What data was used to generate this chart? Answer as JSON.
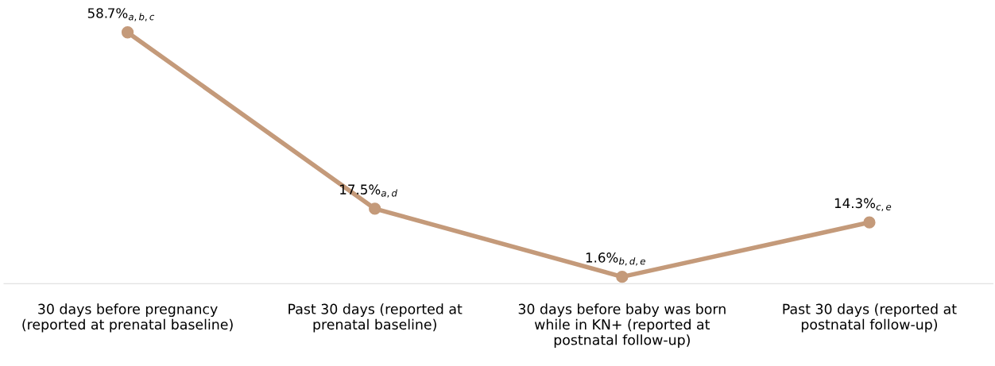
{
  "chart_data": {
    "type": "line",
    "categories": [
      "30 days before pregnancy\n(reported at prenatal baseline)",
      "Past 30 days (reported at\nprenatal baseline)",
      "30 days before baby was born\nwhile in KN+ (reported at\npostnatal follow-up)",
      "Past 30 days (reported at\npostnatal follow-up)"
    ],
    "series": [
      {
        "color": "#c49a7a",
        "values": [
          58.7,
          17.5,
          1.6,
          14.3
        ],
        "value_labels": [
          "58.7%$_{a,b,c}$",
          "17.5%$_{a,d}$",
          "1.6%$_{b,d,e}$",
          "14.3%$_{c,e}$"
        ]
      }
    ],
    "marker": "circle",
    "line_style": "solid",
    "grid": false,
    "legend": false,
    "tick_labels": "x"
  }
}
